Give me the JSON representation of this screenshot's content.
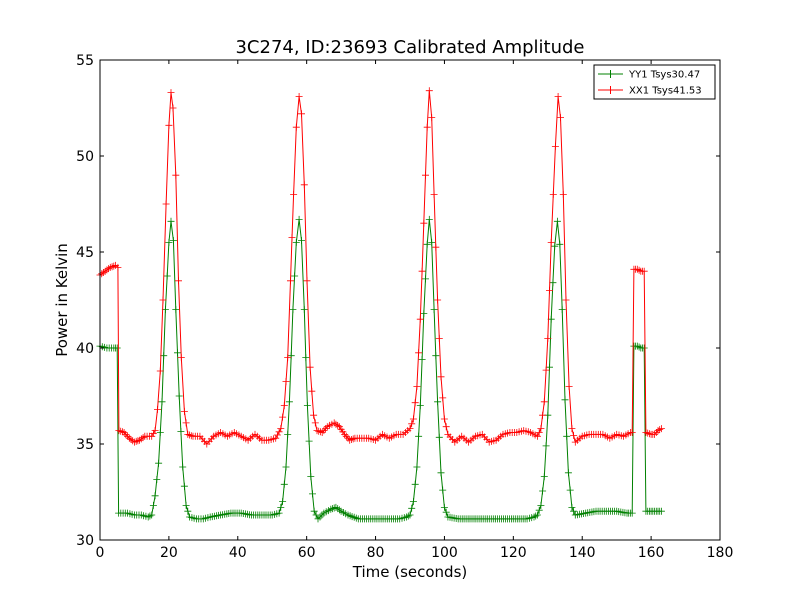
{
  "chart_data": {
    "type": "line",
    "title": "3C274, ID:23693 Calibrated Amplitude",
    "xlabel": "Time (seconds)",
    "ylabel": "Power in Kelvin",
    "xlim": [
      0,
      180
    ],
    "ylim": [
      30,
      55
    ],
    "xticks": [
      0,
      20,
      40,
      60,
      80,
      100,
      120,
      140,
      160,
      180
    ],
    "yticks": [
      30,
      35,
      40,
      45,
      50,
      55
    ],
    "grid": false,
    "legend_position": "top-right",
    "marker": "+",
    "series": [
      {
        "name": "YY1 Tsys30.47",
        "color": "#008000",
        "points": [
          [
            0,
            40.1
          ],
          [
            2,
            40.0
          ],
          [
            4,
            40.0
          ],
          [
            5,
            40.0
          ],
          [
            5.4,
            31.4
          ],
          [
            8,
            31.4
          ],
          [
            10,
            31.3
          ],
          [
            12,
            31.3
          ],
          [
            14,
            31.2
          ],
          [
            15,
            31.3
          ],
          [
            16,
            32.3
          ],
          [
            17,
            34.0
          ],
          [
            18,
            37.2
          ],
          [
            19,
            42.0
          ],
          [
            20,
            45.5
          ],
          [
            20.6,
            46.6
          ],
          [
            21.3,
            45.6
          ],
          [
            22,
            42.0
          ],
          [
            23,
            37.5
          ],
          [
            24,
            33.8
          ],
          [
            25,
            31.8
          ],
          [
            26,
            31.2
          ],
          [
            28,
            31.1
          ],
          [
            30,
            31.1
          ],
          [
            32,
            31.2
          ],
          [
            35,
            31.3
          ],
          [
            38,
            31.4
          ],
          [
            41,
            31.4
          ],
          [
            44,
            31.3
          ],
          [
            47,
            31.3
          ],
          [
            50,
            31.3
          ],
          [
            52,
            31.4
          ],
          [
            53,
            32.0
          ],
          [
            54,
            33.8
          ],
          [
            55,
            37.2
          ],
          [
            56,
            42.0
          ],
          [
            57,
            45.5
          ],
          [
            57.8,
            46.7
          ],
          [
            58.5,
            45.6
          ],
          [
            59.3,
            42.0
          ],
          [
            60.2,
            37.0
          ],
          [
            61.2,
            33.3
          ],
          [
            62.2,
            31.5
          ],
          [
            63.3,
            31.1
          ],
          [
            65,
            31.4
          ],
          [
            67,
            31.6
          ],
          [
            68.5,
            31.7
          ],
          [
            70,
            31.5
          ],
          [
            72,
            31.3
          ],
          [
            75,
            31.1
          ],
          [
            78,
            31.1
          ],
          [
            81,
            31.1
          ],
          [
            84,
            31.1
          ],
          [
            87,
            31.1
          ],
          [
            89,
            31.2
          ],
          [
            90,
            31.3
          ],
          [
            91,
            32.0
          ],
          [
            92,
            33.8
          ],
          [
            93,
            37.0
          ],
          [
            94,
            41.8
          ],
          [
            95,
            45.4
          ],
          [
            95.6,
            46.7
          ],
          [
            96.3,
            45.5
          ],
          [
            97,
            42.0
          ],
          [
            98,
            37.2
          ],
          [
            99,
            33.5
          ],
          [
            100,
            31.7
          ],
          [
            101,
            31.2
          ],
          [
            104,
            31.1
          ],
          [
            108,
            31.1
          ],
          [
            112,
            31.1
          ],
          [
            116,
            31.1
          ],
          [
            120,
            31.1
          ],
          [
            124,
            31.1
          ],
          [
            126,
            31.2
          ],
          [
            127,
            31.3
          ],
          [
            128,
            31.8
          ],
          [
            129,
            33.3
          ],
          [
            130,
            36.5
          ],
          [
            131,
            41.5
          ],
          [
            132,
            45.3
          ],
          [
            132.8,
            46.6
          ],
          [
            133.5,
            45.4
          ],
          [
            134.2,
            42.0
          ],
          [
            135,
            37.3
          ],
          [
            136,
            33.5
          ],
          [
            137,
            31.7
          ],
          [
            138,
            31.3
          ],
          [
            141,
            31.4
          ],
          [
            144,
            31.5
          ],
          [
            147,
            31.5
          ],
          [
            150,
            31.5
          ],
          [
            153,
            31.4
          ],
          [
            154.5,
            31.4
          ],
          [
            155,
            40.1
          ],
          [
            156,
            40.1
          ],
          [
            157,
            40.0
          ],
          [
            158,
            40.0
          ],
          [
            158.5,
            31.5
          ],
          [
            160,
            31.5
          ],
          [
            161,
            31.5
          ],
          [
            162,
            31.5
          ],
          [
            163,
            31.5
          ]
        ]
      },
      {
        "name": "XX1 Tsys41.53",
        "color": "#ff0000",
        "points": [
          [
            0,
            43.8
          ],
          [
            1.5,
            44.0
          ],
          [
            3,
            44.2
          ],
          [
            4.5,
            44.3
          ],
          [
            5.2,
            44.2
          ],
          [
            5.5,
            35.7
          ],
          [
            7,
            35.6
          ],
          [
            8.5,
            35.3
          ],
          [
            10,
            35.1
          ],
          [
            11.5,
            35.2
          ],
          [
            13,
            35.4
          ],
          [
            15,
            35.4
          ],
          [
            16,
            35.7
          ],
          [
            16.7,
            36.8
          ],
          [
            17.5,
            38.8
          ],
          [
            18.3,
            42.5
          ],
          [
            19.2,
            47.5
          ],
          [
            20,
            51.6
          ],
          [
            20.6,
            53.3
          ],
          [
            21.2,
            52.5
          ],
          [
            22,
            49.0
          ],
          [
            22.8,
            43.5
          ],
          [
            23.6,
            39.5
          ],
          [
            24.5,
            36.7
          ],
          [
            25.5,
            35.5
          ],
          [
            27,
            35.4
          ],
          [
            29,
            35.4
          ],
          [
            31,
            35.0
          ],
          [
            33,
            35.4
          ],
          [
            35,
            35.6
          ],
          [
            37,
            35.4
          ],
          [
            39,
            35.6
          ],
          [
            41,
            35.4
          ],
          [
            43,
            35.2
          ],
          [
            45,
            35.5
          ],
          [
            47,
            35.2
          ],
          [
            49,
            35.2
          ],
          [
            51,
            35.3
          ],
          [
            52.5,
            35.8
          ],
          [
            53.5,
            37.0
          ],
          [
            54.5,
            39.5
          ],
          [
            55.3,
            43.5
          ],
          [
            56.2,
            48.0
          ],
          [
            57,
            51.5
          ],
          [
            57.8,
            53.1
          ],
          [
            58.5,
            52.2
          ],
          [
            59.3,
            48.5
          ],
          [
            60.1,
            43.5
          ],
          [
            61,
            39.0
          ],
          [
            62,
            36.5
          ],
          [
            63,
            35.7
          ],
          [
            64.5,
            35.6
          ],
          [
            66,
            35.9
          ],
          [
            68,
            36.1
          ],
          [
            69.5,
            35.9
          ],
          [
            71,
            35.5
          ],
          [
            72.5,
            35.2
          ],
          [
            74,
            35.3
          ],
          [
            76,
            35.3
          ],
          [
            78,
            35.3
          ],
          [
            80,
            35.2
          ],
          [
            82,
            35.5
          ],
          [
            84,
            35.3
          ],
          [
            86,
            35.5
          ],
          [
            88,
            35.5
          ],
          [
            90,
            35.8
          ],
          [
            91,
            36.3
          ],
          [
            92,
            38.0
          ],
          [
            93,
            41.5
          ],
          [
            94,
            46.5
          ],
          [
            95,
            51.5
          ],
          [
            95.6,
            53.4
          ],
          [
            96.3,
            52.0
          ],
          [
            97,
            48.0
          ],
          [
            98,
            42.5
          ],
          [
            99,
            38.5
          ],
          [
            100,
            36.3
          ],
          [
            101,
            35.5
          ],
          [
            103,
            35.1
          ],
          [
            105,
            35.4
          ],
          [
            107,
            35.1
          ],
          [
            109,
            35.4
          ],
          [
            111,
            35.5
          ],
          [
            113,
            35.1
          ],
          [
            115,
            35.2
          ],
          [
            117,
            35.5
          ],
          [
            119,
            35.6
          ],
          [
            121,
            35.6
          ],
          [
            123,
            35.7
          ],
          [
            125,
            35.6
          ],
          [
            127,
            35.4
          ],
          [
            128,
            35.8
          ],
          [
            129,
            37.2
          ],
          [
            130,
            40.5
          ],
          [
            131,
            45.5
          ],
          [
            132.2,
            50.5
          ],
          [
            133,
            53.1
          ],
          [
            133.7,
            52.0
          ],
          [
            134.5,
            48.0
          ],
          [
            135.3,
            42.5
          ],
          [
            136.2,
            38.0
          ],
          [
            137,
            35.8
          ],
          [
            138,
            35.1
          ],
          [
            140,
            35.4
          ],
          [
            142,
            35.5
          ],
          [
            144,
            35.5
          ],
          [
            146,
            35.5
          ],
          [
            148,
            35.3
          ],
          [
            150,
            35.5
          ],
          [
            152,
            35.4
          ],
          [
            154,
            35.6
          ],
          [
            154.5,
            35.6
          ],
          [
            155,
            44.1
          ],
          [
            156,
            44.1
          ],
          [
            157,
            44.0
          ],
          [
            158,
            44.0
          ],
          [
            158.5,
            35.6
          ],
          [
            160,
            35.5
          ],
          [
            161,
            35.5
          ],
          [
            162,
            35.7
          ],
          [
            163,
            35.8
          ]
        ]
      }
    ]
  }
}
